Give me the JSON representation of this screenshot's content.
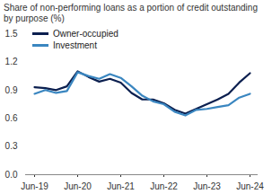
{
  "chart_data": {
    "type": "line",
    "title": "Share of non-performing loans as a portion of credit outstanding by purpose (%)",
    "categories": [
      "Jun-19",
      null,
      null,
      null,
      "Jun-20",
      null,
      null,
      null,
      "Jun-21",
      null,
      null,
      null,
      "Jun-22",
      null,
      null,
      null,
      "Jun-23",
      null,
      null,
      null,
      "Jun-24"
    ],
    "series": [
      {
        "name": "Owner-occupied",
        "color": "#0b1f4f",
        "values": [
          0.93,
          0.92,
          0.9,
          0.94,
          1.1,
          1.04,
          0.99,
          1.02,
          0.98,
          0.87,
          0.8,
          0.8,
          0.76,
          0.69,
          0.65,
          0.7,
          0.75,
          0.8,
          0.86,
          0.98,
          1.08
        ]
      },
      {
        "name": "Investment",
        "color": "#3a86c0",
        "values": [
          0.86,
          0.9,
          0.87,
          0.89,
          1.09,
          1.05,
          1.02,
          1.07,
          1.03,
          0.94,
          0.84,
          0.78,
          0.75,
          0.67,
          0.63,
          0.69,
          0.7,
          0.72,
          0.74,
          0.82,
          0.86
        ]
      }
    ],
    "ylim": [
      0,
      1.5
    ],
    "yticks": [
      {
        "value": 0,
        "label": "0.0"
      },
      0.3,
      0.6,
      0.9,
      1.2,
      1.5
    ],
    "grid": false,
    "legend": "top-left"
  }
}
